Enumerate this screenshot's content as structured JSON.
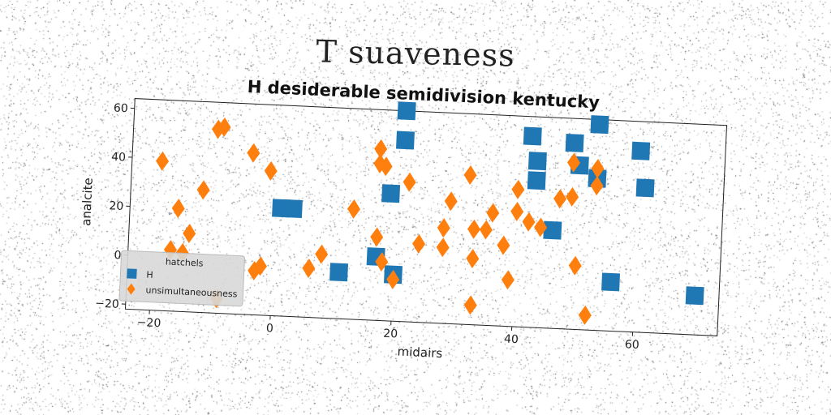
{
  "figure": {
    "title": "T  suaveness"
  },
  "chart_data": {
    "type": "scatter",
    "title": "H desiderable semidivision kentucky",
    "xlabel": "midairs",
    "ylabel": "analcite",
    "xlim": [
      -24,
      74
    ],
    "ylim": [
      -22,
      64
    ],
    "xticks": [
      -20,
      0,
      20,
      40,
      60
    ],
    "yticks": [
      -20,
      0,
      20,
      40,
      60
    ],
    "grid": false,
    "legend": {
      "title": "hatchels",
      "placement": "lower-left"
    },
    "series": [
      {
        "name": "H",
        "marker": "square",
        "color": "#1f77b4",
        "points": [
          [
            1,
            22
          ],
          [
            3,
            22
          ],
          [
            11,
            -3
          ],
          [
            17,
            4
          ],
          [
            19,
            30
          ],
          [
            20,
            -3
          ],
          [
            21,
            64
          ],
          [
            21,
            52
          ],
          [
            42,
            56
          ],
          [
            43,
            46
          ],
          [
            43,
            38
          ],
          [
            46,
            18
          ],
          [
            49,
            54
          ],
          [
            50,
            45
          ],
          [
            53,
            62
          ],
          [
            53,
            40
          ],
          [
            56,
            -2
          ],
          [
            60,
            52
          ],
          [
            61,
            37
          ],
          [
            70,
            -6
          ]
        ]
      },
      {
        "name": "unsimultaneousness",
        "marker": "diamond",
        "color": "#ff7f0e",
        "points": [
          [
            -19,
            39
          ],
          [
            -17,
            3
          ],
          [
            -16,
            20
          ],
          [
            -15,
            2
          ],
          [
            -14,
            10
          ],
          [
            -12,
            28
          ],
          [
            -10,
            53
          ],
          [
            -9,
            54
          ],
          [
            -9,
            -16
          ],
          [
            -4,
            44
          ],
          [
            -3,
            -4
          ],
          [
            -2,
            -2
          ],
          [
            -1,
            37
          ],
          [
            6,
            -2
          ],
          [
            8,
            4
          ],
          [
            13,
            23
          ],
          [
            17,
            12
          ],
          [
            17,
            48
          ],
          [
            17,
            42
          ],
          [
            18,
            41
          ],
          [
            18,
            2
          ],
          [
            20,
            -5
          ],
          [
            22,
            35
          ],
          [
            24,
            10
          ],
          [
            28,
            17
          ],
          [
            28,
            9
          ],
          [
            29,
            28
          ],
          [
            32,
            39
          ],
          [
            33,
            -14
          ],
          [
            33,
            17
          ],
          [
            33,
            5
          ],
          [
            35,
            17
          ],
          [
            36,
            24
          ],
          [
            38,
            11
          ],
          [
            39,
            -3
          ],
          [
            40,
            25
          ],
          [
            40,
            34
          ],
          [
            42,
            21
          ],
          [
            44,
            19
          ],
          [
            47,
            31
          ],
          [
            49,
            46
          ],
          [
            49,
            32
          ],
          [
            50,
            4
          ],
          [
            52,
            -16
          ],
          [
            53,
            37
          ],
          [
            53,
            44
          ]
        ]
      }
    ]
  }
}
